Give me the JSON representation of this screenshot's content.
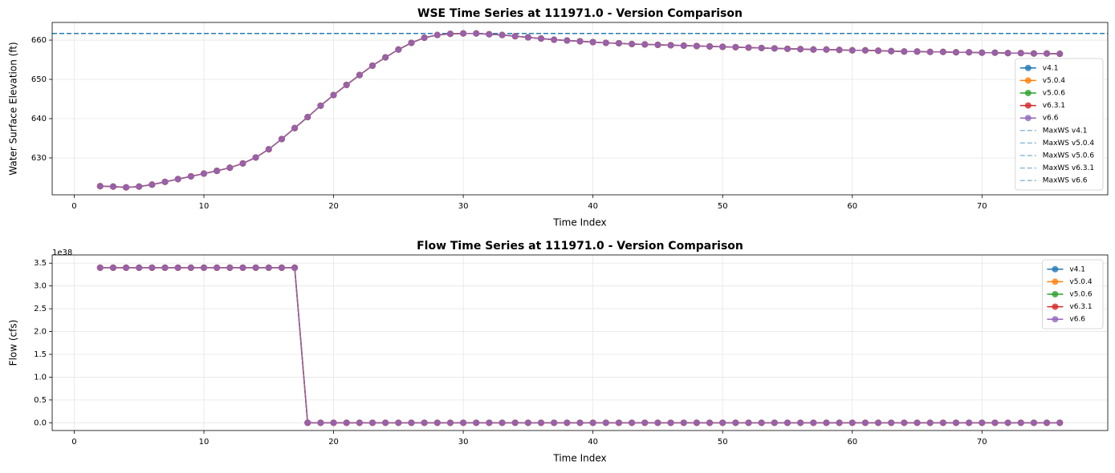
{
  "chart_data": [
    {
      "type": "line",
      "title": "WSE Time Series at 111971.0 - Version Comparison",
      "xlabel": "Time Index",
      "ylabel": "Water Surface Elevation (ft)",
      "x": [
        2,
        3,
        4,
        5,
        6,
        7,
        8,
        9,
        10,
        11,
        12,
        13,
        14,
        15,
        16,
        17,
        18,
        19,
        20,
        21,
        22,
        23,
        24,
        25,
        26,
        27,
        28,
        29,
        30,
        31,
        32,
        33,
        34,
        35,
        36,
        37,
        38,
        39,
        40,
        41,
        42,
        43,
        44,
        45,
        46,
        47,
        48,
        49,
        50,
        51,
        52,
        53,
        54,
        55,
        56,
        57,
        58,
        59,
        60,
        61,
        62,
        63,
        64,
        65,
        66,
        67,
        68,
        69,
        70,
        71,
        72,
        73,
        74,
        75,
        76
      ],
      "series": [
        {
          "name": "v4.1",
          "color": "#1f77b4",
          "values": [
            622.8,
            622.7,
            622.5,
            622.7,
            623.2,
            623.9,
            624.6,
            625.3,
            626.0,
            626.7,
            627.5,
            628.6,
            630.1,
            632.2,
            634.8,
            637.6,
            640.4,
            643.3,
            646.0,
            648.6,
            651.1,
            653.5,
            655.6,
            657.6,
            659.3,
            660.6,
            661.3,
            661.6,
            661.7,
            661.7,
            661.5,
            661.3,
            661.0,
            660.7,
            660.4,
            660.1,
            659.9,
            659.7,
            659.5,
            659.3,
            659.2,
            659.0,
            658.9,
            658.8,
            658.7,
            658.6,
            658.5,
            658.4,
            658.3,
            658.2,
            658.1,
            658.0,
            657.9,
            657.8,
            657.7,
            657.6,
            657.6,
            657.5,
            657.4,
            657.4,
            657.3,
            657.2,
            657.1,
            657.1,
            657.0,
            657.0,
            656.9,
            656.9,
            656.8,
            656.8,
            656.7,
            656.7,
            656.6,
            656.6,
            656.5
          ]
        },
        {
          "name": "v5.0.4",
          "color": "#ff7f0e",
          "values": [
            622.8,
            622.7,
            622.5,
            622.7,
            623.2,
            623.9,
            624.6,
            625.3,
            626.0,
            626.7,
            627.5,
            628.6,
            630.1,
            632.2,
            634.8,
            637.6,
            640.4,
            643.3,
            646.0,
            648.6,
            651.1,
            653.5,
            655.6,
            657.6,
            659.3,
            660.6,
            661.3,
            661.6,
            661.7,
            661.7,
            661.5,
            661.3,
            661.0,
            660.7,
            660.4,
            660.1,
            659.9,
            659.7,
            659.5,
            659.3,
            659.2,
            659.0,
            658.9,
            658.8,
            658.7,
            658.6,
            658.5,
            658.4,
            658.3,
            658.2,
            658.1,
            658.0,
            657.9,
            657.8,
            657.7,
            657.6,
            657.6,
            657.5,
            657.4,
            657.4,
            657.3,
            657.2,
            657.1,
            657.1,
            657.0,
            657.0,
            656.9,
            656.9,
            656.8,
            656.8,
            656.7,
            656.7,
            656.6,
            656.6,
            656.5
          ]
        },
        {
          "name": "v5.0.6",
          "color": "#2ca02c",
          "values": [
            622.8,
            622.7,
            622.5,
            622.7,
            623.2,
            623.9,
            624.6,
            625.3,
            626.0,
            626.7,
            627.5,
            628.6,
            630.1,
            632.2,
            634.8,
            637.6,
            640.4,
            643.3,
            646.0,
            648.6,
            651.1,
            653.5,
            655.6,
            657.6,
            659.3,
            660.6,
            661.3,
            661.6,
            661.7,
            661.7,
            661.5,
            661.3,
            661.0,
            660.7,
            660.4,
            660.1,
            659.9,
            659.7,
            659.5,
            659.3,
            659.2,
            659.0,
            658.9,
            658.8,
            658.7,
            658.6,
            658.5,
            658.4,
            658.3,
            658.2,
            658.1,
            658.0,
            657.9,
            657.8,
            657.7,
            657.6,
            657.6,
            657.5,
            657.4,
            657.4,
            657.3,
            657.2,
            657.1,
            657.1,
            657.0,
            657.0,
            656.9,
            656.9,
            656.8,
            656.8,
            656.7,
            656.7,
            656.6,
            656.6,
            656.5
          ]
        },
        {
          "name": "v6.3.1",
          "color": "#d62728",
          "values": [
            622.8,
            622.7,
            622.5,
            622.7,
            623.2,
            623.9,
            624.6,
            625.3,
            626.0,
            626.7,
            627.5,
            628.6,
            630.1,
            632.2,
            634.8,
            637.6,
            640.4,
            643.3,
            646.0,
            648.6,
            651.1,
            653.5,
            655.6,
            657.6,
            659.3,
            660.6,
            661.3,
            661.6,
            661.7,
            661.7,
            661.5,
            661.3,
            661.0,
            660.7,
            660.4,
            660.1,
            659.9,
            659.7,
            659.5,
            659.3,
            659.2,
            659.0,
            658.9,
            658.8,
            658.7,
            658.6,
            658.5,
            658.4,
            658.3,
            658.2,
            658.1,
            658.0,
            657.9,
            657.8,
            657.7,
            657.6,
            657.6,
            657.5,
            657.4,
            657.4,
            657.3,
            657.2,
            657.1,
            657.1,
            657.0,
            657.0,
            656.9,
            656.9,
            656.8,
            656.8,
            656.7,
            656.7,
            656.6,
            656.6,
            656.5
          ]
        },
        {
          "name": "v6.6",
          "color": "#9467bd",
          "values": [
            622.8,
            622.7,
            622.5,
            622.7,
            623.2,
            623.9,
            624.6,
            625.3,
            626.0,
            626.7,
            627.5,
            628.6,
            630.1,
            632.2,
            634.8,
            637.6,
            640.4,
            643.3,
            646.0,
            648.6,
            651.1,
            653.5,
            655.6,
            657.6,
            659.3,
            660.6,
            661.3,
            661.6,
            661.7,
            661.7,
            661.5,
            661.3,
            661.0,
            660.7,
            660.4,
            660.1,
            659.9,
            659.7,
            659.5,
            659.3,
            659.2,
            659.0,
            658.9,
            658.8,
            658.7,
            658.6,
            658.5,
            658.4,
            658.3,
            658.2,
            658.1,
            658.0,
            657.9,
            657.8,
            657.7,
            657.6,
            657.6,
            657.5,
            657.4,
            657.4,
            657.3,
            657.2,
            657.1,
            657.1,
            657.0,
            657.0,
            656.9,
            656.9,
            656.8,
            656.8,
            656.7,
            656.7,
            656.6,
            656.6,
            656.5
          ]
        }
      ],
      "reference_lines": [
        {
          "name": "MaxWS v4.1",
          "value": 661.7,
          "color": "#1f77b4"
        },
        {
          "name": "MaxWS v5.0.4",
          "value": 661.7,
          "color": "#1f77b4"
        },
        {
          "name": "MaxWS v5.0.6",
          "value": 661.7,
          "color": "#1f77b4"
        },
        {
          "name": "MaxWS v6.3.1",
          "value": 661.7,
          "color": "#1f77b4"
        },
        {
          "name": "MaxWS v6.6",
          "value": 661.7,
          "color": "#1f77b4"
        }
      ],
      "xlim": [
        -1.7,
        79.7
      ],
      "ylim": [
        620.6,
        664.5
      ],
      "xticks": [
        0,
        10,
        20,
        30,
        40,
        50,
        60,
        70
      ],
      "yticks": [
        630,
        640,
        650,
        660
      ],
      "grid": true,
      "legend": "lower right"
    },
    {
      "type": "line",
      "title": "Flow Time Series at 111971.0 - Version Comparison",
      "xlabel": "Time Index",
      "ylabel": "Flow (cfs)",
      "y_multiplier": "1e38",
      "x": [
        2,
        3,
        4,
        5,
        6,
        7,
        8,
        9,
        10,
        11,
        12,
        13,
        14,
        15,
        16,
        17,
        18,
        19,
        20,
        21,
        22,
        23,
        24,
        25,
        26,
        27,
        28,
        29,
        30,
        31,
        32,
        33,
        34,
        35,
        36,
        37,
        38,
        39,
        40,
        41,
        42,
        43,
        44,
        45,
        46,
        47,
        48,
        49,
        50,
        51,
        52,
        53,
        54,
        55,
        56,
        57,
        58,
        59,
        60,
        61,
        62,
        63,
        64,
        65,
        66,
        67,
        68,
        69,
        70,
        71,
        72,
        73,
        74,
        75,
        76
      ],
      "series": [
        {
          "name": "v4.1",
          "color": "#1f77b4",
          "values": [
            3.4,
            3.4,
            3.4,
            3.4,
            3.4,
            3.4,
            3.4,
            3.4,
            3.4,
            3.4,
            3.4,
            3.4,
            3.4,
            3.4,
            3.4,
            3.4,
            0,
            0,
            0,
            0,
            0,
            0,
            0,
            0,
            0,
            0,
            0,
            0,
            0,
            0,
            0,
            0,
            0,
            0,
            0,
            0,
            0,
            0,
            0,
            0,
            0,
            0,
            0,
            0,
            0,
            0,
            0,
            0,
            0,
            0,
            0,
            0,
            0,
            0,
            0,
            0,
            0,
            0,
            0,
            0,
            0,
            0,
            0,
            0,
            0,
            0,
            0,
            0,
            0,
            0,
            0,
            0,
            0,
            0,
            0
          ]
        },
        {
          "name": "v5.0.4",
          "color": "#ff7f0e",
          "values": [
            3.4,
            3.4,
            3.4,
            3.4,
            3.4,
            3.4,
            3.4,
            3.4,
            3.4,
            3.4,
            3.4,
            3.4,
            3.4,
            3.4,
            3.4,
            3.4,
            0,
            0,
            0,
            0,
            0,
            0,
            0,
            0,
            0,
            0,
            0,
            0,
            0,
            0,
            0,
            0,
            0,
            0,
            0,
            0,
            0,
            0,
            0,
            0,
            0,
            0,
            0,
            0,
            0,
            0,
            0,
            0,
            0,
            0,
            0,
            0,
            0,
            0,
            0,
            0,
            0,
            0,
            0,
            0,
            0,
            0,
            0,
            0,
            0,
            0,
            0,
            0,
            0,
            0,
            0,
            0,
            0,
            0,
            0
          ]
        },
        {
          "name": "v5.0.6",
          "color": "#2ca02c",
          "values": [
            3.4,
            3.4,
            3.4,
            3.4,
            3.4,
            3.4,
            3.4,
            3.4,
            3.4,
            3.4,
            3.4,
            3.4,
            3.4,
            3.4,
            3.4,
            3.4,
            0,
            0,
            0,
            0,
            0,
            0,
            0,
            0,
            0,
            0,
            0,
            0,
            0,
            0,
            0,
            0,
            0,
            0,
            0,
            0,
            0,
            0,
            0,
            0,
            0,
            0,
            0,
            0,
            0,
            0,
            0,
            0,
            0,
            0,
            0,
            0,
            0,
            0,
            0,
            0,
            0,
            0,
            0,
            0,
            0,
            0,
            0,
            0,
            0,
            0,
            0,
            0,
            0,
            0,
            0,
            0,
            0,
            0,
            0
          ]
        },
        {
          "name": "v6.3.1",
          "color": "#d62728",
          "values": [
            3.4,
            3.4,
            3.4,
            3.4,
            3.4,
            3.4,
            3.4,
            3.4,
            3.4,
            3.4,
            3.4,
            3.4,
            3.4,
            3.4,
            3.4,
            3.4,
            0,
            0,
            0,
            0,
            0,
            0,
            0,
            0,
            0,
            0,
            0,
            0,
            0,
            0,
            0,
            0,
            0,
            0,
            0,
            0,
            0,
            0,
            0,
            0,
            0,
            0,
            0,
            0,
            0,
            0,
            0,
            0,
            0,
            0,
            0,
            0,
            0,
            0,
            0,
            0,
            0,
            0,
            0,
            0,
            0,
            0,
            0,
            0,
            0,
            0,
            0,
            0,
            0,
            0,
            0,
            0,
            0,
            0,
            0
          ]
        },
        {
          "name": "v6.6",
          "color": "#9467bd",
          "values": [
            3.4,
            3.4,
            3.4,
            3.4,
            3.4,
            3.4,
            3.4,
            3.4,
            3.4,
            3.4,
            3.4,
            3.4,
            3.4,
            3.4,
            3.4,
            3.4,
            0,
            0,
            0,
            0,
            0,
            0,
            0,
            0,
            0,
            0,
            0,
            0,
            0,
            0,
            0,
            0,
            0,
            0,
            0,
            0,
            0,
            0,
            0,
            0,
            0,
            0,
            0,
            0,
            0,
            0,
            0,
            0,
            0,
            0,
            0,
            0,
            0,
            0,
            0,
            0,
            0,
            0,
            0,
            0,
            0,
            0,
            0,
            0,
            0,
            0,
            0,
            0,
            0,
            0,
            0,
            0,
            0,
            0,
            0
          ]
        }
      ],
      "xlim": [
        -1.7,
        79.7
      ],
      "ylim": [
        -0.17,
        3.68
      ],
      "xticks": [
        0,
        10,
        20,
        30,
        40,
        50,
        60,
        70
      ],
      "yticks": [
        {
          "value": 0,
          "label": "0.0"
        },
        0.5,
        {
          "value": 1,
          "label": "1.0"
        },
        1.5,
        {
          "value": 2,
          "label": "2.0"
        },
        2.5,
        {
          "value": 3,
          "label": "3.0"
        },
        3.5
      ],
      "grid": true,
      "legend": "upper right"
    }
  ]
}
